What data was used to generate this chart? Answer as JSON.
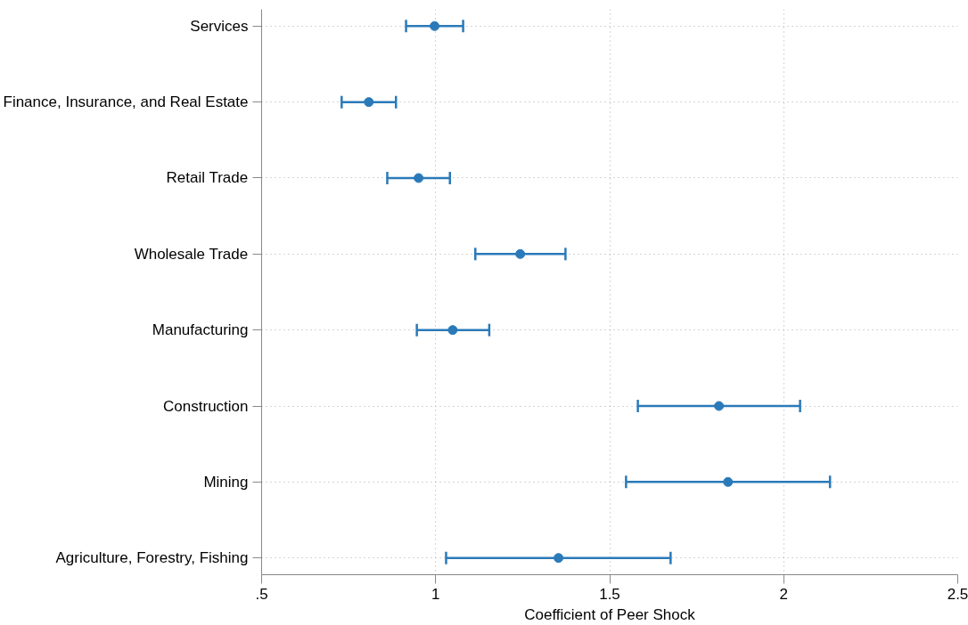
{
  "chart_data": {
    "type": "scatter",
    "orientation": "horizontal",
    "xlabel": "Coefficient of Peer Shock",
    "categories": [
      "Services",
      "Finance, Insurance, and Real Estate",
      "Retail Trade",
      "Wholesale Trade",
      "Manufacturing",
      "Construction",
      "Mining",
      "Agriculture, Forestry, Fishing"
    ],
    "color": "#2a7ab9",
    "values": [
      0.997,
      0.808,
      0.951,
      1.243,
      1.049,
      1.814,
      1.84,
      1.353
    ],
    "errors": [
      [
        0.915,
        1.079
      ],
      [
        0.73,
        0.886
      ],
      [
        0.861,
        1.041
      ],
      [
        1.114,
        1.373
      ],
      [
        0.946,
        1.154
      ],
      [
        1.581,
        2.047
      ],
      [
        1.547,
        2.133
      ],
      [
        1.03,
        1.675
      ]
    ],
    "xlim": [
      0.5,
      2.5
    ],
    "xticks": [
      {
        "value": 0.5,
        "label": ".5"
      },
      1,
      1.5,
      2,
      2.5
    ],
    "grid": true,
    "marker": "circle"
  }
}
